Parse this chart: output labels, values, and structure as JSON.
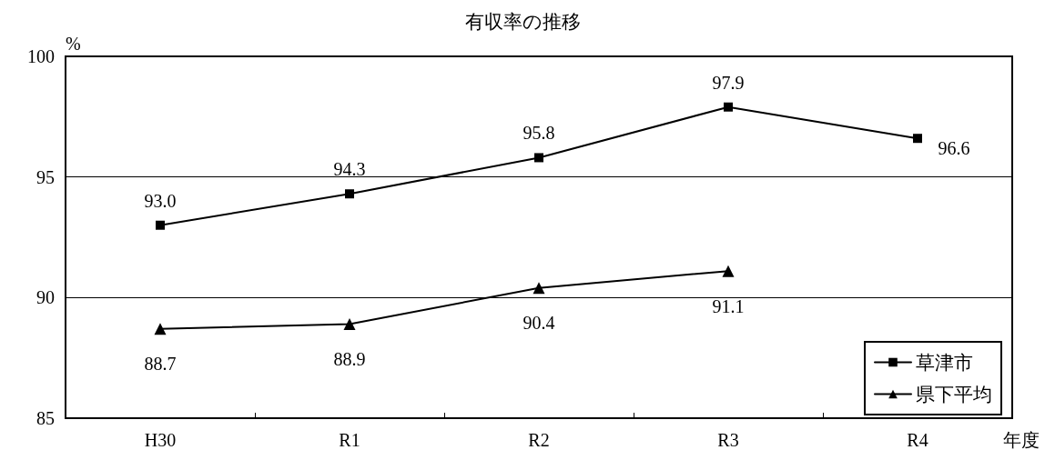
{
  "chart_data": {
    "type": "line",
    "title": "有収率の推移",
    "xlabel": "年度",
    "ylabel": "%",
    "categories": [
      "H30",
      "R1",
      "R2",
      "R3",
      "R4"
    ],
    "series": [
      {
        "name": "草津市",
        "color": "#000000",
        "marker": "square",
        "values": [
          93.0,
          94.3,
          95.8,
          97.9,
          96.6
        ],
        "value_labels": [
          "93.0",
          "94.3",
          "95.8",
          "97.9",
          "96.6"
        ]
      },
      {
        "name": "県下平均",
        "color": "#000000",
        "marker": "triangle",
        "values": [
          88.7,
          88.9,
          90.4,
          91.1,
          null
        ],
        "value_labels": [
          "88.7",
          "88.9",
          "90.4",
          "91.1",
          null
        ]
      }
    ],
    "ylim": [
      85,
      100
    ],
    "yticks": [
      85,
      90,
      95,
      100
    ],
    "grid": "y",
    "legend": "bottom right",
    "line_style": "solid"
  }
}
